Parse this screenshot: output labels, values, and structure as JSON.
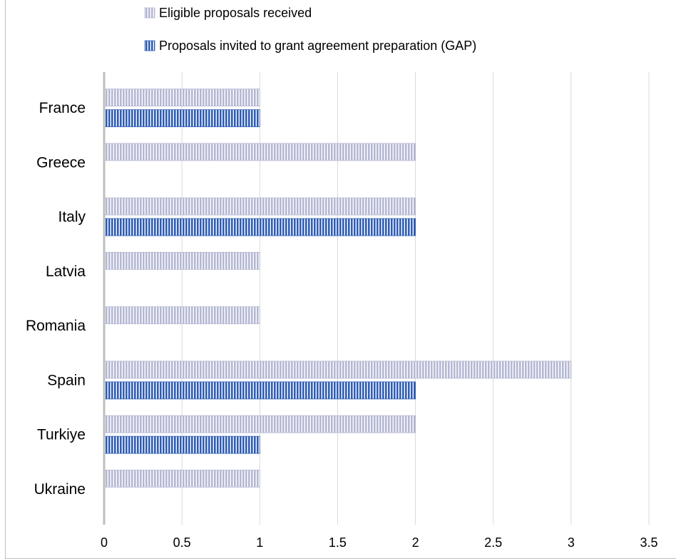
{
  "chart_data": {
    "type": "bar",
    "orientation": "horizontal",
    "categories": [
      "France",
      "Greece",
      "Italy",
      "Latvia",
      "Romania",
      "Spain",
      "Turkiye",
      "Ukraine"
    ],
    "series": [
      {
        "name": "Eligible proposals received",
        "values": [
          1,
          2,
          2,
          1,
          1,
          3,
          2,
          1
        ],
        "color": "#b4b8d3",
        "pattern": "vertical-stripes"
      },
      {
        "name": "Proposals invited to grant agreement preparation (GAP)",
        "values": [
          1,
          0,
          2,
          0,
          0,
          2,
          1,
          0
        ],
        "color": "#2e5db4",
        "pattern": "vertical-stripes"
      }
    ],
    "xlim": [
      0,
      3.5
    ],
    "xticks": [
      "0",
      "0.5",
      "1",
      "1.5",
      "2",
      "2.5",
      "3",
      "3.5"
    ],
    "grid": true,
    "legend_position": "top"
  }
}
